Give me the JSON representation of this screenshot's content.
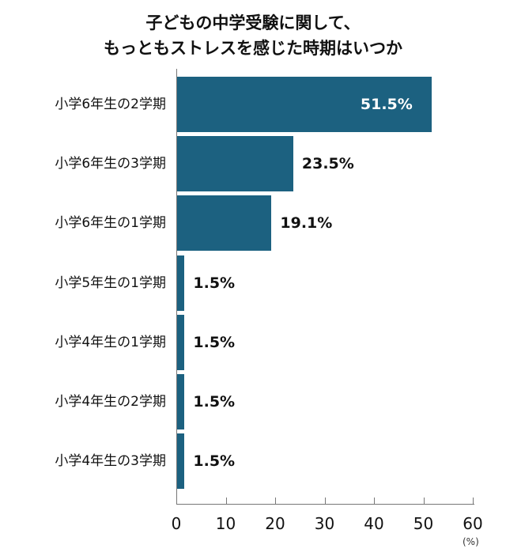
{
  "chart_data": {
    "type": "bar",
    "orientation": "horizontal",
    "title": "子どもの中学受験に関して、もっともストレスを感じた時期はいつか",
    "title_lines": [
      "子どもの中学受験に関して、",
      "もっともストレスを感じた時期はいつか"
    ],
    "categories": [
      "小学6年生の2学期",
      "小学6年生の3学期",
      "小学6年生の1学期",
      "小学5年生の1学期",
      "小学4年生の1学期",
      "小学4年生の2学期",
      "小学4年生の3学期"
    ],
    "values": [
      51.5,
      23.5,
      19.1,
      1.5,
      1.5,
      1.5,
      1.5
    ],
    "value_labels": [
      "51.5%",
      "23.5%",
      "19.1%",
      "1.5%",
      "1.5%",
      "1.5%",
      "1.5%"
    ],
    "xlabel": "(%)",
    "ylabel": "",
    "xlim": [
      0,
      60
    ],
    "xticks": [
      "0",
      "10",
      "20",
      "30",
      "40",
      "50",
      "60"
    ],
    "grid": false,
    "legend": null,
    "bar_color": "#1c6180"
  }
}
